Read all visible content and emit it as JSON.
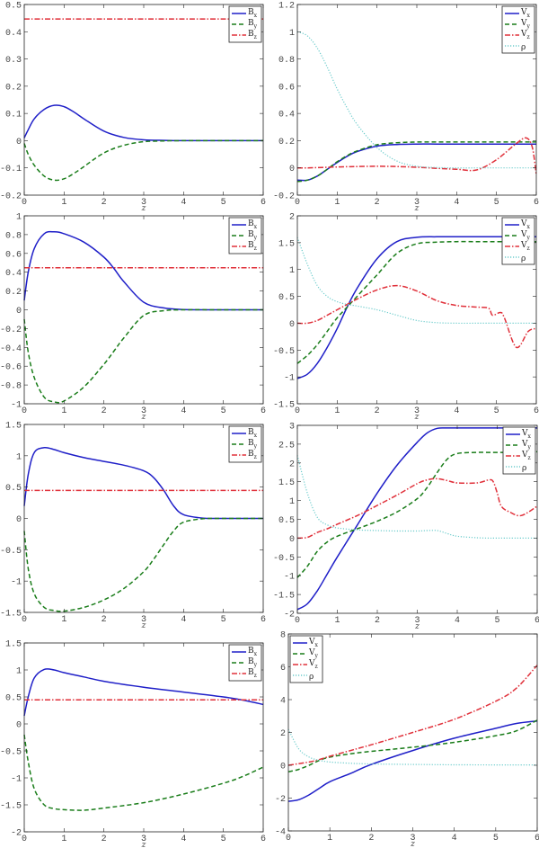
{
  "colors": {
    "Bx": "#1f1fc8",
    "By": "#1a7d1a",
    "Bz": "#e0303a",
    "Vx": "#1f1fc8",
    "Vy": "#1a7d1a",
    "Vz": "#e0303a",
    "rho": "#6ccccc"
  },
  "chart_data": [
    {
      "type": "line",
      "xlabel": "z",
      "xlim": [
        0,
        6
      ],
      "ylim": [
        -0.2,
        0.5
      ],
      "ystep": 0.1,
      "grid": false,
      "legend": "top-right",
      "x": [
        0,
        0.1,
        0.25,
        0.5,
        0.75,
        1,
        1.25,
        1.5,
        2,
        2.5,
        3,
        3.5,
        4,
        5,
        6
      ],
      "series": [
        {
          "name": "Bx",
          "key": "Bx",
          "style": "solid",
          "values": [
            0.01,
            0.04,
            0.08,
            0.115,
            0.13,
            0.125,
            0.105,
            0.08,
            0.035,
            0.012,
            0.003,
            0.001,
            0,
            0,
            0
          ]
        },
        {
          "name": "By",
          "key": "By",
          "style": "dashed",
          "values": [
            -0.01,
            -0.05,
            -0.09,
            -0.13,
            -0.145,
            -0.14,
            -0.12,
            -0.095,
            -0.045,
            -0.017,
            -0.004,
            -0.001,
            0,
            0,
            0
          ]
        },
        {
          "name": "Bz",
          "key": "Bz",
          "style": "dashdot",
          "values": [
            0.447,
            0.447,
            0.447,
            0.447,
            0.447,
            0.447,
            0.447,
            0.447,
            0.447,
            0.447,
            0.447,
            0.447,
            0.447,
            0.447,
            0.447
          ]
        }
      ]
    },
    {
      "type": "line",
      "xlabel": "z",
      "xlim": [
        0,
        6
      ],
      "ylim": [
        -0.2,
        1.2
      ],
      "ystep": 0.2,
      "grid": false,
      "legend": "top-right",
      "x": [
        0,
        0.25,
        0.5,
        0.75,
        1,
        1.25,
        1.5,
        2,
        2.5,
        3,
        3.5,
        4,
        4.5,
        5,
        5.5,
        5.75,
        5.9,
        6
      ],
      "series": [
        {
          "name": "Vx",
          "key": "Vx",
          "style": "solid",
          "values": [
            -0.09,
            -0.09,
            -0.06,
            -0.01,
            0.04,
            0.085,
            0.12,
            0.16,
            0.172,
            0.175,
            0.175,
            0.175,
            0.175,
            0.175,
            0.175,
            0.175,
            0.175,
            0.175
          ]
        },
        {
          "name": "Vy",
          "key": "Vy",
          "style": "dashed",
          "values": [
            -0.1,
            -0.09,
            -0.06,
            -0.01,
            0.045,
            0.09,
            0.125,
            0.17,
            0.185,
            0.19,
            0.19,
            0.19,
            0.19,
            0.19,
            0.19,
            0.19,
            0.19,
            0.19
          ]
        },
        {
          "name": "Vz",
          "key": "Vz",
          "style": "dashdot",
          "values": [
            0,
            0,
            0.002,
            0.005,
            0.007,
            0.009,
            0.01,
            0.012,
            0.01,
            0.005,
            -0.003,
            -0.01,
            -0.015,
            0.06,
            0.18,
            0.22,
            0.15,
            -0.05
          ]
        },
        {
          "name": "ρ",
          "key": "rho",
          "style": "dotted",
          "values": [
            1.0,
            0.97,
            0.88,
            0.74,
            0.58,
            0.44,
            0.32,
            0.15,
            0.05,
            0.012,
            0.003,
            0,
            0,
            0,
            0,
            0,
            0,
            0
          ]
        }
      ]
    },
    {
      "type": "line",
      "xlabel": "z",
      "xlim": [
        0,
        6
      ],
      "ylim": [
        -1,
        1
      ],
      "ystep": 0.2,
      "grid": false,
      "legend": "top-right",
      "x": [
        0,
        0.1,
        0.25,
        0.5,
        0.75,
        1,
        1.5,
        2,
        2.25,
        2.5,
        3,
        3.5,
        4,
        5,
        6
      ],
      "series": [
        {
          "name": "Bx",
          "key": "Bx",
          "style": "solid",
          "values": [
            0.1,
            0.4,
            0.65,
            0.81,
            0.83,
            0.81,
            0.72,
            0.56,
            0.44,
            0.3,
            0.08,
            0.02,
            0.003,
            0,
            0
          ]
        },
        {
          "name": "By",
          "key": "By",
          "style": "dashed",
          "values": [
            -0.1,
            -0.45,
            -0.72,
            -0.93,
            -0.98,
            -0.97,
            -0.82,
            -0.58,
            -0.44,
            -0.3,
            -0.06,
            -0.01,
            0,
            0,
            0
          ]
        },
        {
          "name": "Bz",
          "key": "Bz",
          "style": "dashdot",
          "values": [
            0.447,
            0.447,
            0.447,
            0.447,
            0.447,
            0.447,
            0.447,
            0.447,
            0.447,
            0.447,
            0.447,
            0.447,
            0.447,
            0.447,
            0.447
          ]
        }
      ]
    },
    {
      "type": "line",
      "xlabel": "z",
      "xlim": [
        0,
        6
      ],
      "ylim": [
        -1.5,
        2
      ],
      "ystep": 0.5,
      "grid": false,
      "legend": "top-right",
      "x": [
        0,
        0.25,
        0.5,
        0.75,
        1,
        1.25,
        1.5,
        2,
        2.5,
        3,
        3.5,
        4,
        4.5,
        4.8,
        4.9,
        5.1,
        5.2,
        5.5,
        5.8,
        6
      ],
      "series": [
        {
          "name": "Vx",
          "key": "Vx",
          "style": "solid",
          "values": [
            -1.03,
            -0.95,
            -0.75,
            -0.45,
            -0.1,
            0.3,
            0.65,
            1.2,
            1.52,
            1.6,
            1.61,
            1.61,
            1.61,
            1.61,
            1.61,
            1.61,
            1.61,
            1.61,
            1.61,
            1.61
          ]
        },
        {
          "name": "Vy",
          "key": "Vy",
          "style": "dashed",
          "values": [
            -0.75,
            -0.6,
            -0.4,
            -0.15,
            0.1,
            0.3,
            0.5,
            0.9,
            1.3,
            1.48,
            1.51,
            1.52,
            1.52,
            1.52,
            1.52,
            1.52,
            1.52,
            1.52,
            1.52,
            1.52
          ]
        },
        {
          "name": "Vz",
          "key": "Vz",
          "style": "dashdot",
          "values": [
            0,
            0,
            0.05,
            0.15,
            0.25,
            0.35,
            0.45,
            0.62,
            0.7,
            0.6,
            0.42,
            0.33,
            0.3,
            0.28,
            0.15,
            0.2,
            0.1,
            -0.45,
            -0.15,
            -0.1
          ]
        },
        {
          "name": "ρ",
          "key": "rho",
          "style": "dotted",
          "values": [
            1.6,
            1.1,
            0.7,
            0.5,
            0.4,
            0.35,
            0.32,
            0.25,
            0.15,
            0.05,
            0.01,
            0,
            0,
            0,
            0,
            0,
            0,
            0,
            0,
            0
          ]
        }
      ]
    },
    {
      "type": "line",
      "xlabel": "z",
      "xlim": [
        0,
        6
      ],
      "ylim": [
        -1.5,
        1.5
      ],
      "ystep": 0.5,
      "grid": false,
      "legend": "top-right",
      "x": [
        0,
        0.1,
        0.25,
        0.5,
        0.75,
        1,
        1.5,
        2,
        2.5,
        3,
        3.25,
        3.5,
        3.75,
        4,
        4.5,
        5,
        6
      ],
      "series": [
        {
          "name": "Bx",
          "key": "Bx",
          "style": "solid",
          "values": [
            0.2,
            0.7,
            1.05,
            1.13,
            1.1,
            1.05,
            0.97,
            0.91,
            0.85,
            0.76,
            0.65,
            0.45,
            0.2,
            0.06,
            0.005,
            0,
            0
          ]
        },
        {
          "name": "By",
          "key": "By",
          "style": "dashed",
          "values": [
            -0.2,
            -0.8,
            -1.2,
            -1.42,
            -1.47,
            -1.48,
            -1.42,
            -1.3,
            -1.12,
            -0.85,
            -0.65,
            -0.42,
            -0.2,
            -0.06,
            -0.005,
            0,
            0
          ]
        },
        {
          "name": "Bz",
          "key": "Bz",
          "style": "dashdot",
          "values": [
            0.447,
            0.447,
            0.447,
            0.447,
            0.447,
            0.447,
            0.447,
            0.447,
            0.447,
            0.447,
            0.447,
            0.447,
            0.447,
            0.447,
            0.447,
            0.447,
            0.447
          ]
        }
      ]
    },
    {
      "type": "line",
      "xlabel": "z",
      "xlim": [
        0,
        6
      ],
      "ylim": [
        -2,
        3
      ],
      "ystep": 0.5,
      "grid": false,
      "legend": "top-right",
      "x": [
        0,
        0.25,
        0.5,
        0.75,
        1,
        1.5,
        2,
        2.5,
        3,
        3.25,
        3.5,
        3.75,
        4,
        4.5,
        4.8,
        4.9,
        5,
        5.1,
        5.3,
        5.6,
        6
      ],
      "series": [
        {
          "name": "Vx",
          "key": "Vx",
          "style": "solid",
          "values": [
            -1.9,
            -1.75,
            -1.4,
            -0.95,
            -0.5,
            0.35,
            1.2,
            1.95,
            2.55,
            2.8,
            2.92,
            2.93,
            2.93,
            2.93,
            2.93,
            2.93,
            2.93,
            2.93,
            2.93,
            2.93,
            2.93
          ]
        },
        {
          "name": "Vy",
          "key": "Vy",
          "style": "dashed",
          "values": [
            -1.05,
            -0.75,
            -0.35,
            -0.1,
            0.05,
            0.25,
            0.45,
            0.7,
            1.05,
            1.35,
            1.75,
            2.1,
            2.25,
            2.28,
            2.28,
            2.28,
            2.28,
            2.28,
            2.28,
            2.28,
            2.3
          ]
        },
        {
          "name": "Vz",
          "key": "Vz",
          "style": "dashdot",
          "values": [
            0,
            0.02,
            0.15,
            0.25,
            0.37,
            0.6,
            0.87,
            1.15,
            1.45,
            1.55,
            1.58,
            1.53,
            1.47,
            1.47,
            1.55,
            1.5,
            1.2,
            0.85,
            0.7,
            0.6,
            0.85
          ]
        },
        {
          "name": "ρ",
          "key": "rho",
          "style": "dotted",
          "values": [
            2.2,
            1.2,
            0.55,
            0.35,
            0.27,
            0.22,
            0.2,
            0.19,
            0.19,
            0.2,
            0.2,
            0.12,
            0.05,
            0.01,
            0,
            0,
            0,
            0,
            0,
            0,
            0
          ]
        }
      ]
    },
    {
      "type": "line",
      "xlabel": "z",
      "xlim": [
        0,
        6
      ],
      "ylim": [
        -2,
        1.5
      ],
      "ystep": 0.5,
      "grid": false,
      "legend": "top-right",
      "x": [
        0,
        0.1,
        0.25,
        0.5,
        0.75,
        1,
        1.5,
        2,
        3,
        4,
        5,
        5.5,
        6
      ],
      "series": [
        {
          "name": "Bx",
          "key": "Bx",
          "style": "solid",
          "values": [
            0.15,
            0.5,
            0.85,
            1.01,
            1.0,
            0.95,
            0.87,
            0.79,
            0.68,
            0.59,
            0.5,
            0.44,
            0.36
          ]
        },
        {
          "name": "By",
          "key": "By",
          "style": "dashed",
          "values": [
            -0.2,
            -0.7,
            -1.2,
            -1.5,
            -1.57,
            -1.59,
            -1.6,
            -1.56,
            -1.46,
            -1.3,
            -1.1,
            -0.97,
            -0.8
          ]
        },
        {
          "name": "Bz",
          "key": "Bz",
          "style": "dashdot",
          "values": [
            0.447,
            0.447,
            0.447,
            0.447,
            0.447,
            0.447,
            0.447,
            0.447,
            0.447,
            0.447,
            0.447,
            0.447,
            0.447
          ]
        }
      ]
    },
    {
      "type": "line",
      "xlabel": "z",
      "xlim": [
        0,
        6
      ],
      "ylim": [
        -4,
        8
      ],
      "ystep": 2,
      "grid": false,
      "legend": "top-left",
      "x": [
        0,
        0.25,
        0.5,
        0.75,
        1,
        1.5,
        2,
        3,
        4,
        5,
        5.5,
        6
      ],
      "series": [
        {
          "name": "Vx",
          "key": "Vx",
          "style": "solid",
          "values": [
            -2.2,
            -2.1,
            -1.8,
            -1.4,
            -1.0,
            -0.5,
            0.05,
            0.9,
            1.65,
            2.25,
            2.55,
            2.7
          ]
        },
        {
          "name": "Vy",
          "key": "Vy",
          "style": "dashed",
          "values": [
            -0.4,
            -0.25,
            0,
            0.3,
            0.5,
            0.7,
            0.85,
            1.1,
            1.4,
            1.8,
            2.1,
            2.75
          ]
        },
        {
          "name": "Vz",
          "key": "Vz",
          "style": "dashdot",
          "values": [
            0,
            0.1,
            0.2,
            0.35,
            0.55,
            0.9,
            1.25,
            2.0,
            2.8,
            3.9,
            4.7,
            6.1
          ]
        },
        {
          "name": "ρ",
          "key": "rho",
          "style": "dotted",
          "values": [
            2.2,
            1.0,
            0.5,
            0.3,
            0.2,
            0.12,
            0.08,
            0.05,
            0.03,
            0.02,
            0.02,
            0.02
          ]
        }
      ]
    }
  ]
}
